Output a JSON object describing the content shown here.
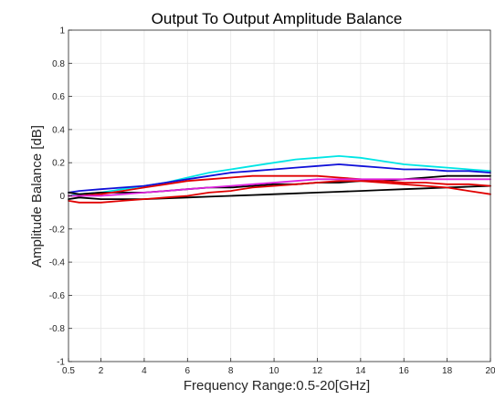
{
  "chart_data": {
    "type": "line",
    "title": "Output To Output Amplitude Balance",
    "xlabel": "Frequency Range:0.5-20[GHz]",
    "ylabel": "Amplitude Balance [dB]",
    "xlim": [
      0.5,
      20
    ],
    "ylim": [
      -1,
      1
    ],
    "xticks": [
      0.5,
      2,
      4,
      6,
      8,
      10,
      12,
      14,
      16,
      18,
      20
    ],
    "yticks": [
      -1,
      -0.8,
      -0.6,
      -0.4,
      -0.2,
      0,
      0.2,
      0.4,
      0.6,
      0.8,
      1
    ],
    "grid": true,
    "series": [
      {
        "color": "#00e5e5",
        "x": [
          0.5,
          1,
          2,
          3,
          4,
          5,
          6,
          7,
          8,
          9,
          10,
          11,
          12,
          13,
          14,
          15,
          16,
          17,
          18,
          19,
          20
        ],
        "y": [
          0.0,
          0.01,
          0.02,
          0.04,
          0.06,
          0.08,
          0.11,
          0.14,
          0.16,
          0.18,
          0.2,
          0.22,
          0.23,
          0.24,
          0.23,
          0.21,
          0.19,
          0.18,
          0.17,
          0.16,
          0.15
        ]
      },
      {
        "color": "#1010d8",
        "x": [
          0.5,
          1,
          2,
          3,
          4,
          5,
          6,
          7,
          8,
          9,
          10,
          11,
          12,
          13,
          14,
          15,
          16,
          17,
          18,
          19,
          20
        ],
        "y": [
          0.02,
          0.03,
          0.04,
          0.05,
          0.06,
          0.08,
          0.1,
          0.12,
          0.14,
          0.15,
          0.16,
          0.17,
          0.18,
          0.19,
          0.18,
          0.17,
          0.16,
          0.16,
          0.15,
          0.15,
          0.14
        ]
      },
      {
        "color": "#000000",
        "x": [
          0.5,
          1,
          2,
          3,
          4,
          5,
          6,
          7,
          8,
          9,
          10,
          11,
          12,
          13,
          14,
          15,
          16,
          17,
          18,
          19,
          20
        ],
        "y": [
          0.02,
          0.01,
          0.02,
          0.02,
          0.02,
          0.03,
          0.04,
          0.05,
          0.05,
          0.06,
          0.07,
          0.07,
          0.08,
          0.08,
          0.09,
          0.09,
          0.1,
          0.11,
          0.12,
          0.12,
          0.12
        ]
      },
      {
        "color": "#000000",
        "x": [
          0.5,
          1,
          2,
          3,
          4,
          5,
          6,
          7,
          8,
          9,
          10,
          11,
          12,
          13,
          14,
          15,
          16,
          17,
          18,
          19,
          20
        ],
        "y": [
          -0.02,
          -0.01,
          -0.02,
          -0.02,
          -0.02,
          -0.015,
          -0.01,
          -0.005,
          0.0,
          0.005,
          0.01,
          0.015,
          0.02,
          0.025,
          0.03,
          0.035,
          0.04,
          0.045,
          0.05,
          0.055,
          0.06
        ]
      },
      {
        "color": "#e00000",
        "x": [
          0.5,
          1,
          2,
          3,
          4,
          5,
          6,
          7,
          8,
          9,
          10,
          11,
          12,
          13,
          14,
          15,
          16,
          17,
          18,
          19,
          20
        ],
        "y": [
          0.0,
          0.0,
          0.01,
          0.03,
          0.05,
          0.07,
          0.09,
          0.1,
          0.11,
          0.12,
          0.12,
          0.12,
          0.12,
          0.11,
          0.1,
          0.09,
          0.08,
          0.08,
          0.07,
          0.07,
          0.06
        ]
      },
      {
        "color": "#e00000",
        "x": [
          0.5,
          1,
          2,
          3,
          4,
          5,
          6,
          7,
          8,
          9,
          10,
          11,
          12,
          13,
          14,
          15,
          16,
          17,
          18,
          19,
          20
        ],
        "y": [
          -0.03,
          -0.04,
          -0.04,
          -0.03,
          -0.02,
          -0.01,
          0.0,
          0.02,
          0.03,
          0.05,
          0.06,
          0.07,
          0.08,
          0.09,
          0.09,
          0.08,
          0.07,
          0.06,
          0.05,
          0.03,
          0.01
        ]
      },
      {
        "color": "#dd22dd",
        "x": [
          0.5,
          1,
          2,
          3,
          4,
          5,
          6,
          7,
          8,
          9,
          10,
          11,
          12,
          13,
          14,
          15,
          16,
          17,
          18,
          19,
          20
        ],
        "y": [
          0.0,
          0.0,
          0.0,
          0.01,
          0.02,
          0.03,
          0.04,
          0.05,
          0.06,
          0.07,
          0.08,
          0.09,
          0.1,
          0.1,
          0.1,
          0.1,
          0.1,
          0.1,
          0.1,
          0.1,
          0.1
        ]
      }
    ]
  }
}
